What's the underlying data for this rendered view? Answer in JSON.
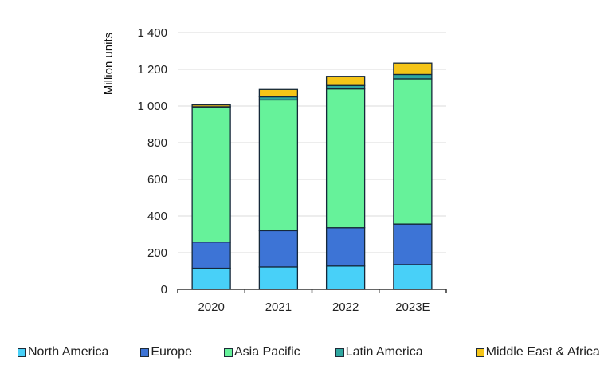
{
  "chart_data": {
    "type": "bar",
    "stacked": true,
    "title": "",
    "xlabel": "",
    "ylabel": "Million units",
    "ylim": [
      0,
      1400
    ],
    "yticks": [
      0,
      200,
      400,
      600,
      800,
      1000,
      1200,
      1400
    ],
    "ytick_labels": [
      "0",
      "200",
      "400",
      "600",
      "800",
      "1 000",
      "1 200",
      "1 400"
    ],
    "grid": true,
    "legend_position": "bottom",
    "categories": [
      "2020",
      "2021",
      "2022",
      "2023E"
    ],
    "series": [
      {
        "name": "North America",
        "color": "#48D0F8",
        "values": [
          115,
          122,
          127,
          135
        ]
      },
      {
        "name": "Europe",
        "color": "#3D74D6",
        "values": [
          143,
          198,
          209,
          221
        ]
      },
      {
        "name": "Asia Pacific",
        "color": "#66F29A",
        "values": [
          732,
          713,
          757,
          792
        ]
      },
      {
        "name": "Latin America",
        "color": "#2FA7A0",
        "values": [
          6,
          17,
          19,
          24
        ]
      },
      {
        "name": "Middle East & Africa",
        "color": "#F5C518",
        "values": [
          10,
          40,
          50,
          62
        ]
      }
    ]
  }
}
